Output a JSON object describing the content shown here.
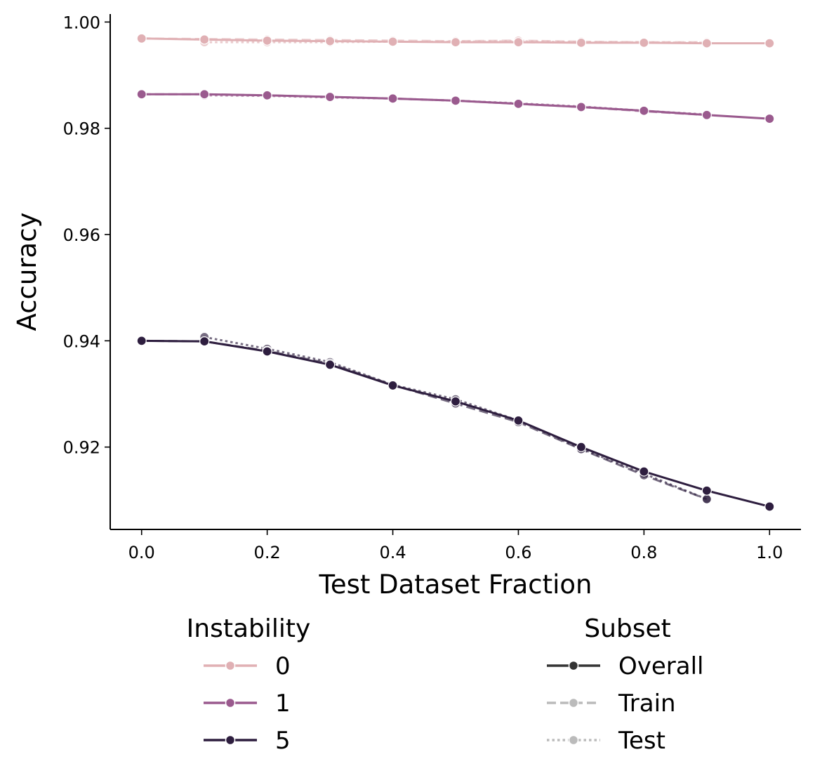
{
  "chart_data": {
    "type": "line",
    "xlabel": "Test Dataset Fraction",
    "ylabel": "Accuracy",
    "xlim": [
      -0.05,
      1.05
    ],
    "ylim": [
      0.9045,
      1.0015
    ],
    "xticks": [
      0.0,
      0.2,
      0.4,
      0.6,
      0.8,
      1.0
    ],
    "xtick_labels": [
      "0.0",
      "0.2",
      "0.4",
      "0.6",
      "0.8",
      "1.0"
    ],
    "yticks": [
      0.92,
      0.94,
      0.96,
      0.98,
      1.0
    ],
    "ytick_labels": [
      "0.92",
      "0.94",
      "0.96",
      "0.98",
      "1.00"
    ],
    "grid": false,
    "legends": {
      "instability": {
        "title": "Instability",
        "entries": [
          {
            "label": "0",
            "color": "#e0b0b4"
          },
          {
            "label": "1",
            "color": "#9a5a8e"
          },
          {
            "label": "5",
            "color": "#2e1e3f"
          }
        ]
      },
      "subset": {
        "title": "Subset",
        "entries": [
          {
            "label": "Overall",
            "style": "solid",
            "color": "#333333"
          },
          {
            "label": "Train",
            "style": "dashed",
            "color": "#bbbbbb"
          },
          {
            "label": "Test",
            "style": "dotted",
            "color": "#bbbbbb"
          }
        ]
      }
    },
    "series": [
      {
        "name": "Instability 0 - Test",
        "instability": "0",
        "subset": "Test",
        "color": "#e0b0b4",
        "x": [
          0.1,
          0.2,
          0.3,
          0.4,
          0.5,
          0.6,
          0.7,
          0.8,
          0.9
        ],
        "y": [
          0.9962,
          0.9962,
          0.9962,
          0.9963,
          0.9963,
          0.9964,
          0.9962,
          0.9962,
          0.9961
        ]
      },
      {
        "name": "Instability 0 - Train",
        "instability": "0",
        "subset": "Train",
        "color": "#e0b0b4",
        "x": [
          0.0,
          0.1,
          0.2,
          0.3,
          0.4,
          0.5,
          0.6,
          0.7,
          0.8,
          0.9
        ],
        "y": [
          0.9969,
          0.9968,
          0.9967,
          0.9966,
          0.9965,
          0.9964,
          0.9965,
          0.9963,
          0.9962,
          0.9962
        ]
      },
      {
        "name": "Instability 0 - Overall",
        "instability": "0",
        "subset": "Overall",
        "color": "#e0b0b4",
        "x": [
          0.0,
          0.1,
          0.2,
          0.3,
          0.4,
          0.5,
          0.6,
          0.7,
          0.8,
          0.9,
          1.0
        ],
        "y": [
          0.9969,
          0.9967,
          0.9965,
          0.9964,
          0.9963,
          0.9962,
          0.9962,
          0.9961,
          0.9961,
          0.996,
          0.996
        ]
      },
      {
        "name": "Instability 1 - Test",
        "instability": "1",
        "subset": "Test",
        "color": "#9a5a8e",
        "x": [
          0.1,
          0.2,
          0.3,
          0.4,
          0.5,
          0.6,
          0.7,
          0.8,
          0.9
        ],
        "y": [
          0.9862,
          0.9861,
          0.9858,
          0.9856,
          0.9852,
          0.9847,
          0.9841,
          0.9833,
          0.9826
        ]
      },
      {
        "name": "Instability 1 - Train",
        "instability": "1",
        "subset": "Train",
        "color": "#9a5a8e",
        "x": [
          0.0,
          0.1,
          0.2,
          0.3,
          0.4,
          0.5,
          0.6,
          0.7,
          0.8,
          0.9
        ],
        "y": [
          0.9864,
          0.9864,
          0.9862,
          0.9859,
          0.9856,
          0.9852,
          0.9846,
          0.984,
          0.9832,
          0.9825
        ]
      },
      {
        "name": "Instability 1 - Overall",
        "instability": "1",
        "subset": "Overall",
        "color": "#9a5a8e",
        "x": [
          0.0,
          0.1,
          0.2,
          0.3,
          0.4,
          0.5,
          0.6,
          0.7,
          0.8,
          0.9,
          1.0
        ],
        "y": [
          0.9864,
          0.9864,
          0.9862,
          0.9859,
          0.9856,
          0.9852,
          0.9846,
          0.984,
          0.9833,
          0.9825,
          0.9818
        ]
      },
      {
        "name": "Instability 5 - Test",
        "instability": "5",
        "subset": "Test",
        "color": "#2e1e3f",
        "x": [
          0.1,
          0.2,
          0.3,
          0.4,
          0.5,
          0.6,
          0.7,
          0.8,
          0.9
        ],
        "y": [
          0.9407,
          0.9385,
          0.936,
          0.9317,
          0.929,
          0.925,
          0.9197,
          0.915,
          0.9102
        ]
      },
      {
        "name": "Instability 5 - Train",
        "instability": "5",
        "subset": "Train",
        "color": "#2e1e3f",
        "x": [
          0.0,
          0.1,
          0.2,
          0.3,
          0.4,
          0.5,
          0.6,
          0.7,
          0.8,
          0.9
        ],
        "y": [
          0.94,
          0.9399,
          0.9381,
          0.9357,
          0.9317,
          0.9282,
          0.9247,
          0.9196,
          0.9147,
          0.9102
        ]
      },
      {
        "name": "Instability 5 - Overall",
        "instability": "5",
        "subset": "Overall",
        "color": "#2e1e3f",
        "x": [
          0.0,
          0.1,
          0.2,
          0.3,
          0.4,
          0.5,
          0.6,
          0.7,
          0.8,
          0.9,
          1.0
        ],
        "y": [
          0.94,
          0.9399,
          0.938,
          0.9355,
          0.9316,
          0.9286,
          0.925,
          0.92,
          0.9154,
          0.9118,
          0.9088
        ]
      }
    ]
  }
}
